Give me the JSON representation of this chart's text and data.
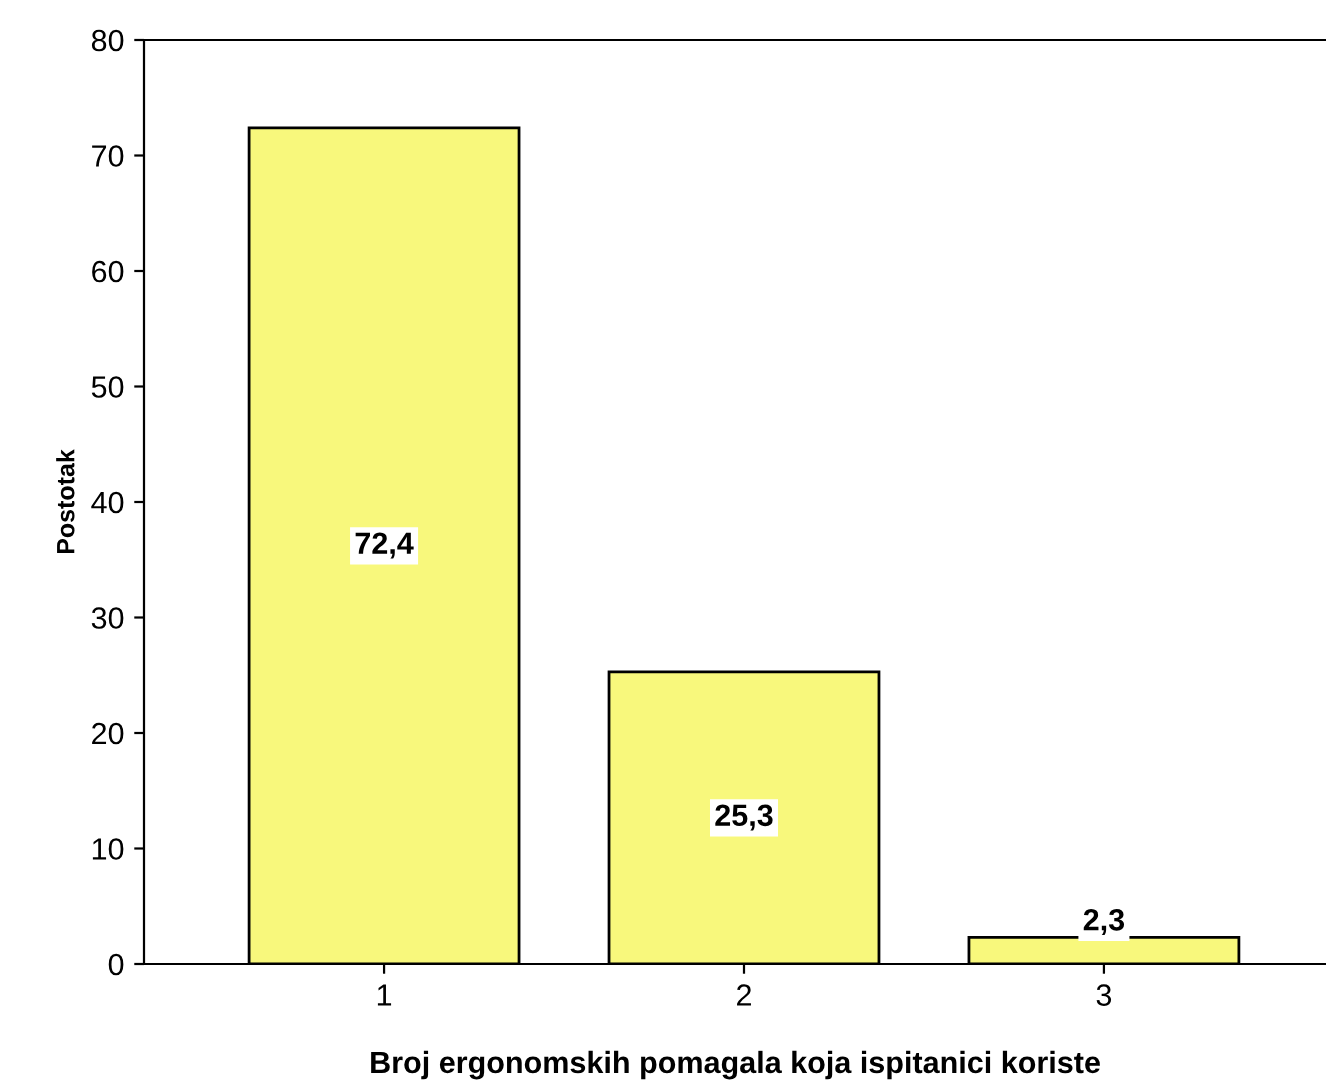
{
  "chart_data": {
    "type": "bar",
    "xlabel": "Broj ergonomskih pomagala koja ispitanici koriste",
    "ylabel": "Postotak",
    "categories": [
      "1",
      "2",
      "3"
    ],
    "values": [
      72.4,
      25.3,
      2.3
    ],
    "value_labels": [
      "72,4",
      "25,3",
      "2,3"
    ],
    "color": "#f8f87c",
    "ylim": [
      0,
      80
    ],
    "yticks": [
      0,
      10,
      20,
      30,
      40,
      50,
      60,
      70,
      80
    ],
    "grid": false,
    "legend": false
  }
}
